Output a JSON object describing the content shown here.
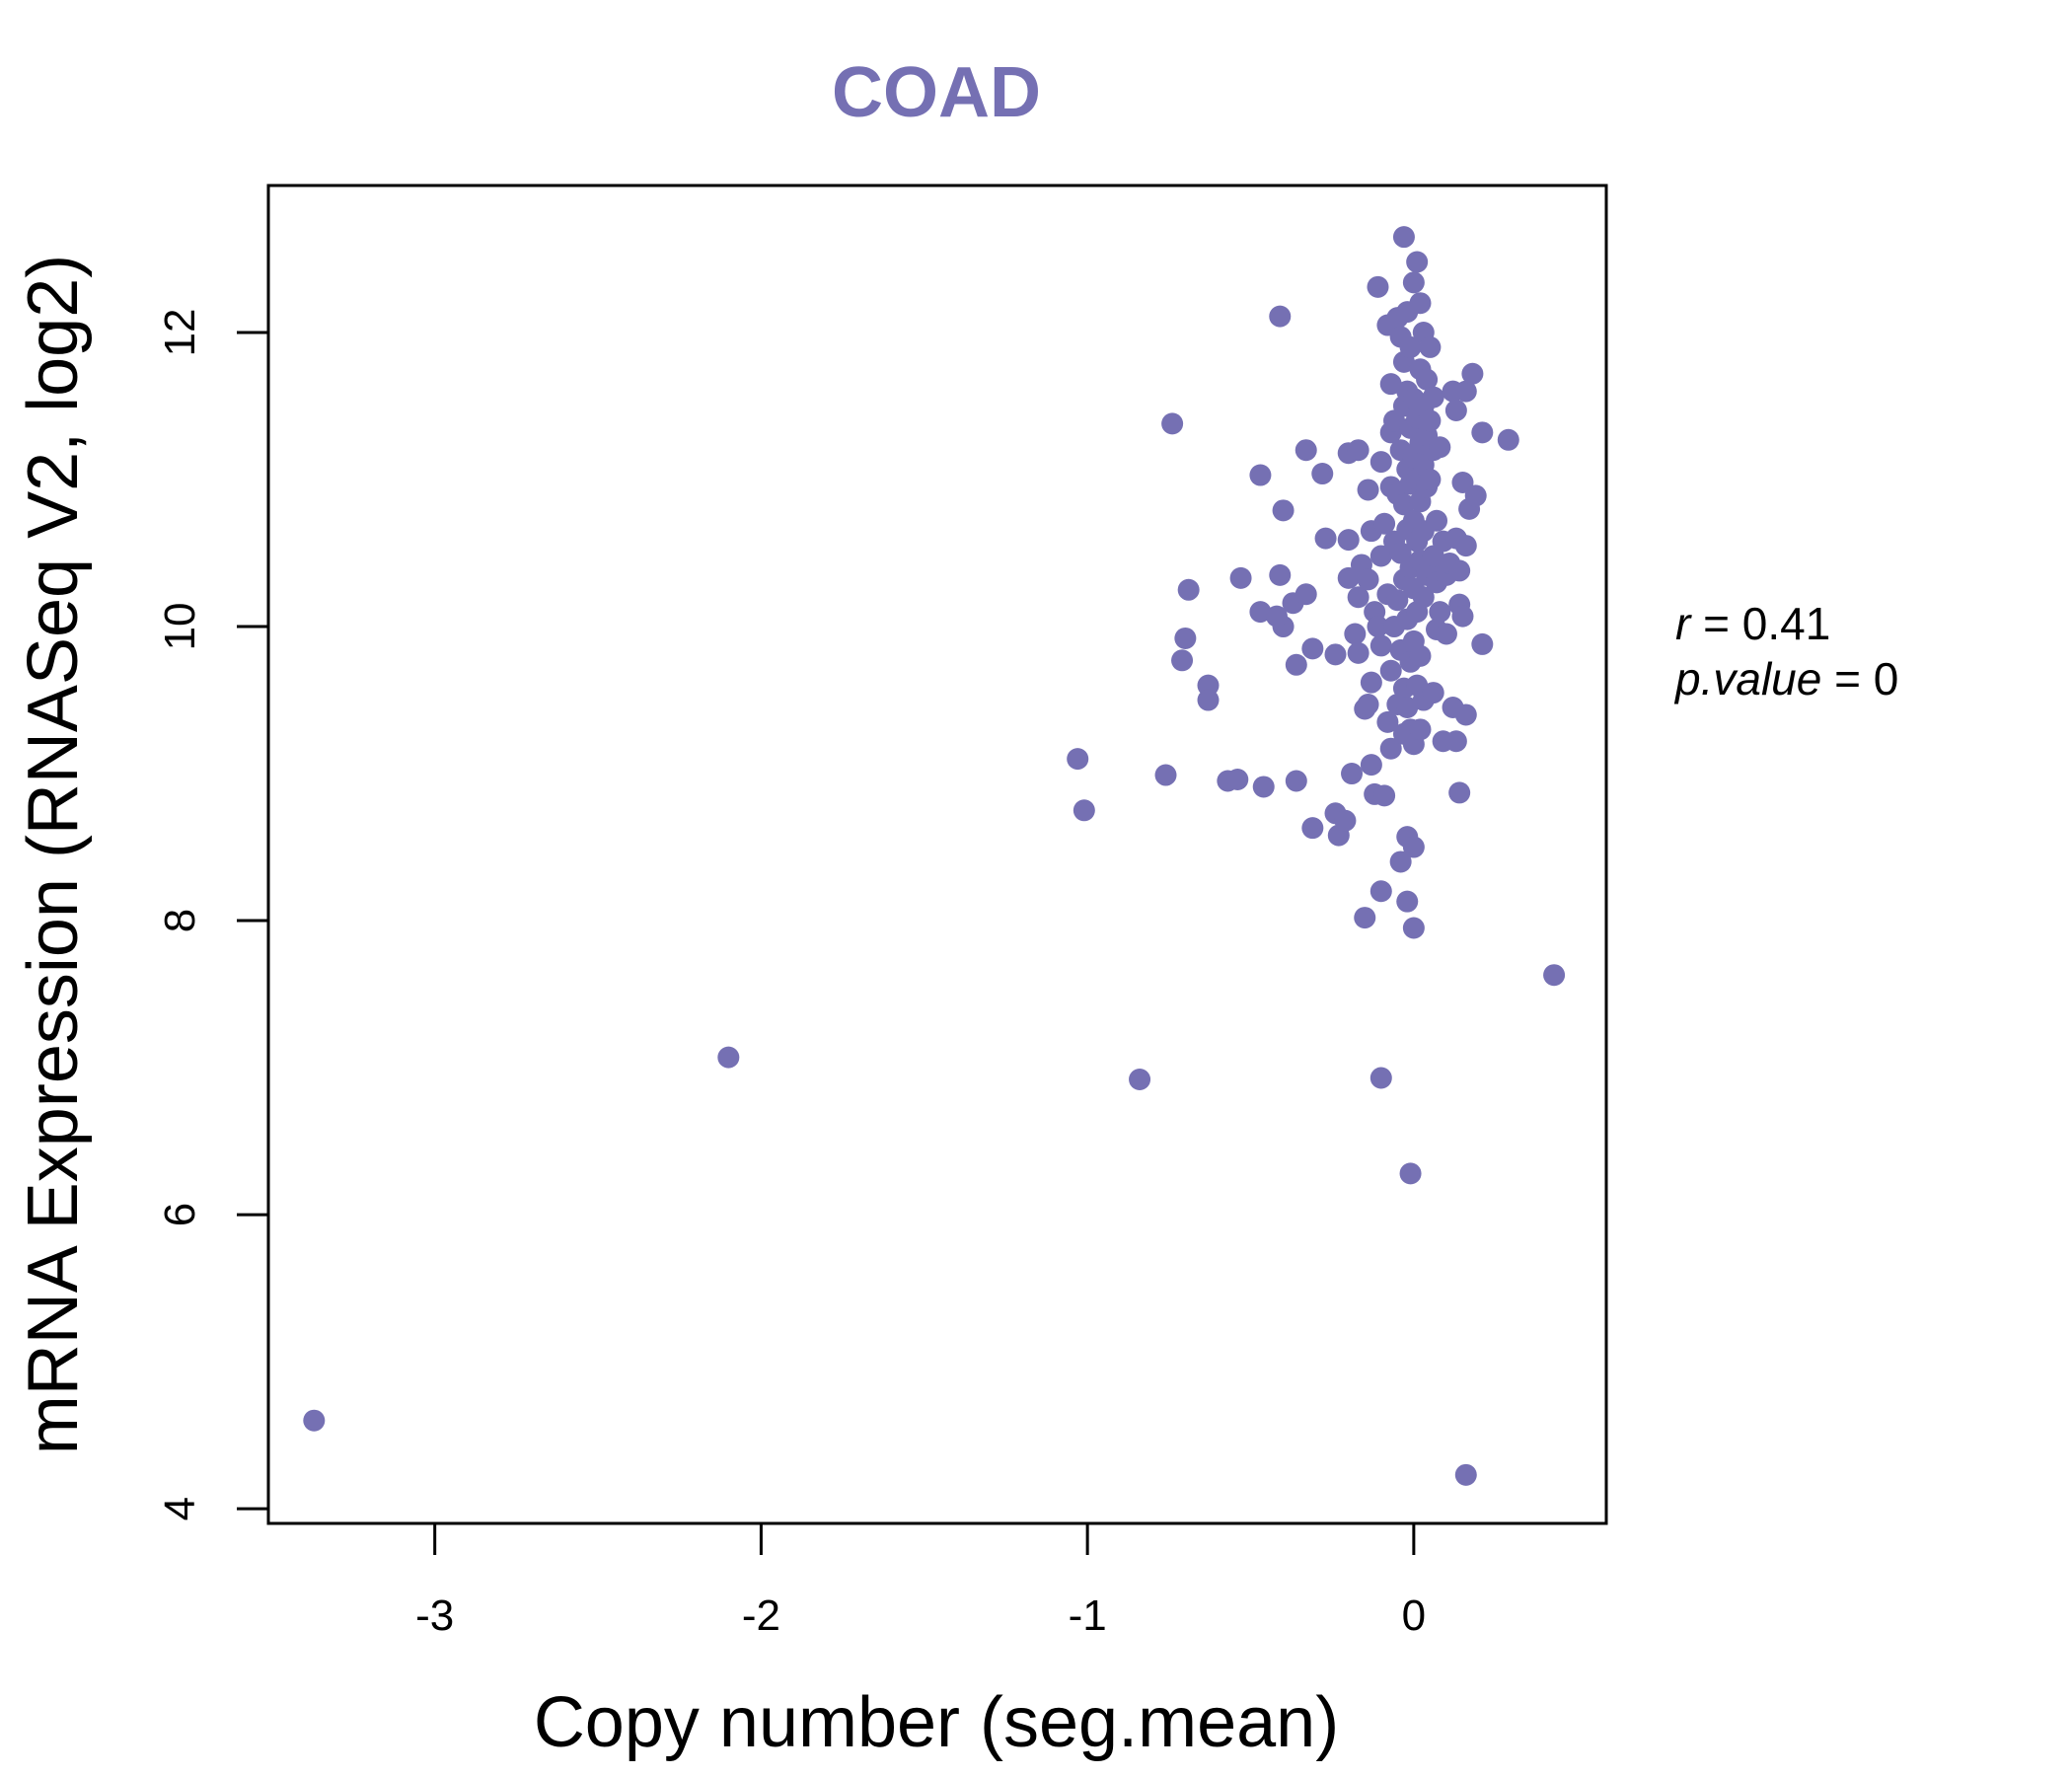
{
  "chart_data": {
    "type": "scatter",
    "title": "COAD",
    "xlabel": "Copy number (seg.mean)",
    "ylabel": "mRNA Expression (RNASeq V2, log2)",
    "xlim": [
      -3.51,
      0.59
    ],
    "ylim": [
      3.9,
      13.0
    ],
    "x_ticks": [
      -3,
      -2,
      -1,
      0
    ],
    "x_tick_labels": [
      "-3",
      "-2",
      "-1",
      "0"
    ],
    "y_ticks": [
      4,
      6,
      8,
      10,
      12
    ],
    "y_tick_labels": [
      "4",
      "6",
      "8",
      "10",
      "12"
    ],
    "grid": false,
    "point_color": "#7570b3",
    "annotation": {
      "r_label": "r",
      "r_value": "0.41",
      "p_label": "p.value",
      "p_value": "0"
    },
    "points": [
      [
        -3.37,
        4.6
      ],
      [
        -2.1,
        7.07
      ],
      [
        -0.84,
        6.92
      ],
      [
        -1.03,
        9.1
      ],
      [
        -1.01,
        8.75
      ],
      [
        -0.76,
        8.99
      ],
      [
        -0.74,
        11.38
      ],
      [
        -0.69,
        10.25
      ],
      [
        -0.7,
        9.92
      ],
      [
        -0.71,
        9.77
      ],
      [
        -0.63,
        9.6
      ],
      [
        -0.63,
        9.5
      ],
      [
        -0.57,
        8.95
      ],
      [
        -0.54,
        8.96
      ],
      [
        -0.46,
        8.91
      ],
      [
        -0.53,
        10.33
      ],
      [
        -0.47,
        10.1
      ],
      [
        -0.47,
        11.03
      ],
      [
        -0.41,
        12.11
      ],
      [
        -0.41,
        10.35
      ],
      [
        -0.4,
        10.79
      ],
      [
        -0.4,
        10.0
      ],
      [
        -0.42,
        10.07
      ],
      [
        -0.37,
        10.16
      ],
      [
        -0.36,
        8.95
      ],
      [
        -0.36,
        9.74
      ],
      [
        -0.33,
        10.22
      ],
      [
        -0.33,
        11.2
      ],
      [
        -0.31,
        9.85
      ],
      [
        -0.31,
        8.63
      ],
      [
        -0.28,
        11.04
      ],
      [
        -0.27,
        10.6
      ],
      [
        -0.24,
        8.73
      ],
      [
        -0.23,
        8.58
      ],
      [
        -0.24,
        9.81
      ],
      [
        -0.21,
        8.68
      ],
      [
        -0.2,
        10.33
      ],
      [
        -0.2,
        10.59
      ],
      [
        -0.2,
        11.18
      ],
      [
        -0.19,
        9.0
      ],
      [
        -0.18,
        9.95
      ],
      [
        -0.17,
        9.82
      ],
      [
        -0.17,
        10.2
      ],
      [
        -0.17,
        11.2
      ],
      [
        -0.16,
        10.42
      ],
      [
        -0.15,
        8.02
      ],
      [
        -0.15,
        9.44
      ],
      [
        -0.14,
        9.47
      ],
      [
        -0.14,
        10.32
      ],
      [
        -0.14,
        10.93
      ],
      [
        -0.13,
        10.65
      ],
      [
        -0.13,
        9.06
      ],
      [
        -0.13,
        9.62
      ],
      [
        -0.12,
        8.86
      ],
      [
        -0.12,
        10.1
      ],
      [
        -0.11,
        12.31
      ],
      [
        -0.11,
        10.0
      ],
      [
        -0.1,
        11.12
      ],
      [
        -0.1,
        10.48
      ],
      [
        -0.1,
        9.87
      ],
      [
        -0.1,
        8.2
      ],
      [
        -0.1,
        6.93
      ],
      [
        -0.09,
        8.85
      ],
      [
        -0.09,
        10.7
      ],
      [
        -0.08,
        10.22
      ],
      [
        -0.08,
        9.35
      ],
      [
        -0.08,
        12.05
      ],
      [
        -0.07,
        11.65
      ],
      [
        -0.07,
        11.32
      ],
      [
        -0.07,
        10.95
      ],
      [
        -0.07,
        9.7
      ],
      [
        -0.07,
        9.17
      ],
      [
        -0.06,
        10.0
      ],
      [
        -0.06,
        10.58
      ],
      [
        -0.06,
        11.4
      ],
      [
        -0.05,
        9.47
      ],
      [
        -0.05,
        10.18
      ],
      [
        -0.05,
        12.1
      ],
      [
        -0.05,
        10.9
      ],
      [
        -0.04,
        8.4
      ],
      [
        -0.04,
        9.84
      ],
      [
        -0.04,
        10.5
      ],
      [
        -0.04,
        11.2
      ],
      [
        -0.04,
        11.97
      ],
      [
        -0.03,
        9.27
      ],
      [
        -0.03,
        9.58
      ],
      [
        -0.03,
        10.32
      ],
      [
        -0.03,
        10.83
      ],
      [
        -0.03,
        11.5
      ],
      [
        -0.03,
        11.8
      ],
      [
        -0.03,
        12.65
      ],
      [
        -0.02,
        8.13
      ],
      [
        -0.02,
        8.57
      ],
      [
        -0.02,
        9.45
      ],
      [
        -0.02,
        10.05
      ],
      [
        -0.02,
        10.66
      ],
      [
        -0.02,
        11.07
      ],
      [
        -0.02,
        11.6
      ],
      [
        -0.02,
        12.14
      ],
      [
        -0.01,
        6.28
      ],
      [
        -0.01,
        9.3
      ],
      [
        -0.01,
        9.76
      ],
      [
        -0.01,
        10.4
      ],
      [
        -0.01,
        10.97
      ],
      [
        -0.01,
        11.35
      ],
      [
        -0.01,
        11.9
      ],
      [
        0.0,
        7.95
      ],
      [
        0.0,
        8.5
      ],
      [
        0.0,
        9.2
      ],
      [
        0.0,
        9.9
      ],
      [
        0.0,
        10.26
      ],
      [
        0.0,
        10.72
      ],
      [
        0.0,
        11.15
      ],
      [
        0.0,
        11.55
      ],
      [
        0.0,
        12.34
      ],
      [
        0.01,
        9.6
      ],
      [
        0.01,
        10.1
      ],
      [
        0.01,
        10.58
      ],
      [
        0.01,
        11.0
      ],
      [
        0.01,
        11.42
      ],
      [
        0.01,
        12.48
      ],
      [
        0.02,
        9.3
      ],
      [
        0.02,
        9.8
      ],
      [
        0.02,
        10.45
      ],
      [
        0.02,
        10.85
      ],
      [
        0.02,
        11.25
      ],
      [
        0.02,
        11.75
      ],
      [
        0.02,
        12.2
      ],
      [
        0.03,
        9.5
      ],
      [
        0.03,
        10.2
      ],
      [
        0.03,
        10.65
      ],
      [
        0.03,
        11.1
      ],
      [
        0.03,
        11.5
      ],
      [
        0.03,
        12.0
      ],
      [
        0.04,
        10.35
      ],
      [
        0.04,
        10.95
      ],
      [
        0.04,
        11.3
      ],
      [
        0.04,
        11.68
      ],
      [
        0.05,
        10.4
      ],
      [
        0.05,
        11.0
      ],
      [
        0.05,
        11.4
      ],
      [
        0.05,
        11.9
      ],
      [
        0.06,
        9.55
      ],
      [
        0.06,
        10.48
      ],
      [
        0.06,
        11.2
      ],
      [
        0.06,
        11.56
      ],
      [
        0.07,
        9.98
      ],
      [
        0.07,
        10.72
      ],
      [
        0.07,
        10.3
      ],
      [
        0.08,
        11.22
      ],
      [
        0.08,
        10.1
      ],
      [
        0.09,
        9.22
      ],
      [
        0.09,
        10.58
      ],
      [
        0.1,
        9.95
      ],
      [
        0.1,
        10.35
      ],
      [
        0.11,
        10.43
      ],
      [
        0.12,
        11.6
      ],
      [
        0.12,
        9.45
      ],
      [
        0.13,
        11.47
      ],
      [
        0.13,
        10.6
      ],
      [
        0.13,
        9.22
      ],
      [
        0.14,
        8.87
      ],
      [
        0.14,
        10.15
      ],
      [
        0.14,
        10.38
      ],
      [
        0.15,
        10.98
      ],
      [
        0.15,
        10.07
      ],
      [
        0.16,
        9.4
      ],
      [
        0.16,
        11.6
      ],
      [
        0.16,
        10.55
      ],
      [
        0.16,
        4.23
      ],
      [
        0.17,
        10.8
      ],
      [
        0.18,
        11.72
      ],
      [
        0.19,
        10.89
      ],
      [
        0.21,
        9.88
      ],
      [
        0.21,
        11.32
      ],
      [
        0.29,
        11.27
      ],
      [
        0.43,
        7.63
      ]
    ]
  }
}
